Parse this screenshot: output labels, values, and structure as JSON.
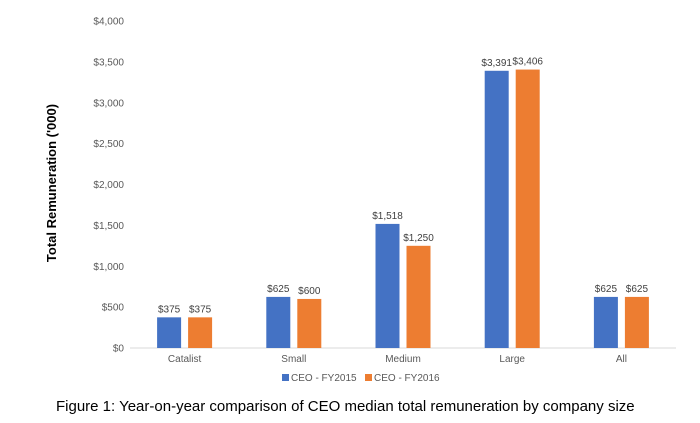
{
  "caption": "Figure 1: Year-on-year comparison of CEO median total remuneration by company size",
  "chart_data": {
    "type": "bar",
    "ylabel": "Total Remuneration ('000)",
    "xlabel": "",
    "title": "",
    "ylim": [
      0,
      4000
    ],
    "yticks": [
      0,
      500,
      1000,
      1500,
      2000,
      2500,
      3000,
      3500,
      4000
    ],
    "ytick_labels": [
      "$0",
      "$500",
      "$1,000",
      "$1,500",
      "$2,000",
      "$2,500",
      "$3,000",
      "$3,500",
      "$4,000"
    ],
    "categories": [
      "Catalist",
      "Small",
      "Medium",
      "Large",
      "All"
    ],
    "series": [
      {
        "name": "CEO - FY2015",
        "color": "#4472C4",
        "values": [
          375,
          625,
          1518,
          3391,
          625
        ],
        "labels": [
          "$375",
          "$625",
          "$1,518",
          "$3,391",
          "$625"
        ]
      },
      {
        "name": "CEO - FY2016",
        "color": "#ED7D31",
        "values": [
          375,
          600,
          1250,
          3406,
          625
        ],
        "labels": [
          "$375",
          "$600",
          "$1,250",
          "$3,406",
          "$625"
        ]
      }
    ],
    "grid": false,
    "legend": "bottom"
  }
}
